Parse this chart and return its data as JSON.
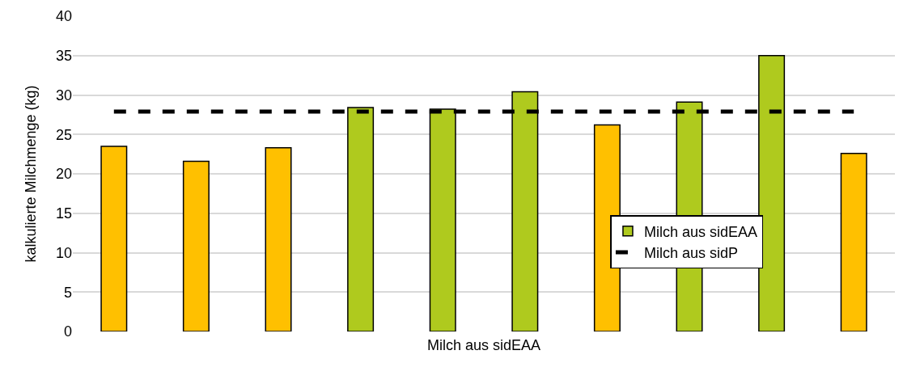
{
  "chart_data": {
    "type": "bar",
    "xlabel": "Milch aus sidEAA",
    "ylabel": "kalkulierte Milchmenge (kg)",
    "categories": [
      null,
      null,
      null,
      null,
      null,
      null,
      null,
      null,
      null,
      null
    ],
    "series": [
      {
        "name": "Milch aus sidEAA",
        "color": "#afca1e",
        "colors": [
          "#ffc000",
          "#ffc000",
          "#ffc000",
          "#afca1e",
          "#afca1e",
          "#afca1e",
          "#ffc000",
          "#afca1e",
          "#afca1e",
          "#ffc000"
        ],
        "values": [
          23.5,
          21.6,
          23.3,
          28.4,
          28.2,
          30.4,
          26.2,
          29.1,
          35.0,
          22.6
        ]
      },
      {
        "type": "line",
        "name": "Milch aus sidP",
        "color": "#000000",
        "line_style": "dashed",
        "values": [
          27.9,
          27.9,
          27.9,
          27.9,
          27.9,
          27.9,
          27.9,
          27.9,
          27.9,
          27.9
        ]
      }
    ],
    "ylim": [
      0,
      40
    ],
    "yticks": [
      0,
      5,
      10,
      15,
      20,
      25,
      30,
      35,
      40
    ],
    "grid": "y",
    "legend": "bottom right"
  }
}
